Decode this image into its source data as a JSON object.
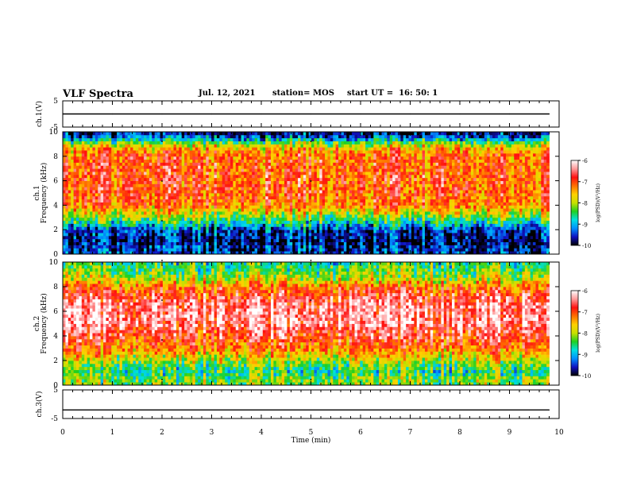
{
  "header": {
    "title": "VLF Spectra",
    "date": "Jul. 12, 2021",
    "station": "station= MOS",
    "start": "start UT =  16: 50: 1"
  },
  "colorbar": {
    "ticks": [
      "-6",
      "-7",
      "-8",
      "-9",
      "-10"
    ],
    "label": "log(PSD)(V²/Hz)",
    "stops": [
      "#000000",
      "#1010c0",
      "#0090ff",
      "#00e0e0",
      "#20d020",
      "#c8e000",
      "#ffd000",
      "#ff7000",
      "#ff1010",
      "#ff9999",
      "#ffffff"
    ]
  },
  "chart_data": [
    {
      "type": "line",
      "panel": "ch1-voltage",
      "ylabel": "ch.1(V)",
      "ylim": [
        -5,
        5
      ],
      "yticks": [
        "5",
        "-5"
      ],
      "x": [
        0,
        1,
        2,
        3,
        4,
        5,
        6,
        7,
        8,
        9,
        9.8
      ],
      "values": [
        0,
        0,
        0,
        0,
        0,
        0,
        0,
        0,
        0,
        0,
        0
      ]
    },
    {
      "type": "heatmap",
      "panel": "ch1-spectrogram",
      "ylabel": "ch.1",
      "ylabel2": "Frequency (kHz)",
      "ylim": [
        0,
        10
      ],
      "yticks": [
        "0",
        "2",
        "4",
        "6",
        "8",
        "10"
      ],
      "colorbar_range": [
        -10,
        -6
      ],
      "freq_bands_khz": [
        0.5,
        1,
        1.5,
        2,
        2.5,
        3,
        4,
        5,
        6,
        7,
        8,
        8.5,
        9,
        9.5,
        10
      ],
      "log_psd": [
        -9.5,
        -9.8,
        -9.6,
        -9.5,
        -8.8,
        -8.2,
        -7.2,
        -7.0,
        -7.0,
        -7.0,
        -7.1,
        -7.3,
        -8.0,
        -9.2,
        -9.8
      ]
    },
    {
      "type": "heatmap",
      "panel": "ch2-spectrogram",
      "ylabel": "ch.2",
      "ylabel2": "Frequency (kHz)",
      "ylim": [
        0,
        10
      ],
      "yticks": [
        "0",
        "2",
        "4",
        "6",
        "8",
        "10"
      ],
      "colorbar_range": [
        -10,
        -6
      ],
      "freq_bands_khz": [
        0.5,
        1,
        1.5,
        2,
        2.5,
        3,
        4,
        5,
        6,
        7,
        8,
        8.5,
        9,
        9.5,
        10
      ],
      "log_psd": [
        -8.2,
        -8.6,
        -8.4,
        -8.0,
        -7.6,
        -7.2,
        -6.8,
        -6.4,
        -6.4,
        -6.6,
        -7.2,
        -7.8,
        -8.2,
        -8.4,
        -8.6
      ]
    },
    {
      "type": "line",
      "panel": "ch3-voltage",
      "ylabel": "ch.3(V)",
      "ylim": [
        -5,
        5
      ],
      "yticks": [
        "5",
        "-5"
      ],
      "x": [
        0,
        9.8
      ],
      "values": [
        -2,
        -2
      ]
    }
  ],
  "xaxis": {
    "label": "Time (min)",
    "ticks": [
      "0",
      "1",
      "2",
      "3",
      "4",
      "5",
      "6",
      "7",
      "8",
      "9",
      "10"
    ],
    "xlim": [
      0,
      10
    ],
    "data_end": 9.8
  }
}
